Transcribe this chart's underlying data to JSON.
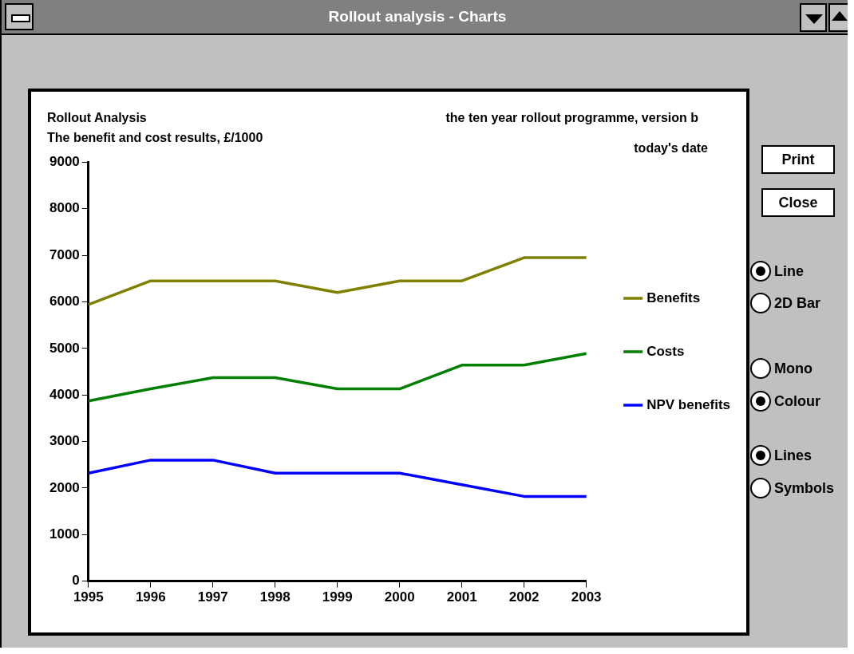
{
  "chart_data": {
    "type": "line",
    "title": "Rollout Analysis",
    "subtitle": "The benefit and cost results, £/1000",
    "annotations": [
      "the ten year rollout programme, version b",
      "today's date",
      "Rollout analysis - Charts",
      "Print",
      "Close",
      "Line",
      "2D Bar",
      "Mono",
      "Colour",
      "Lines",
      "Symbols"
    ],
    "categories": [
      "1995",
      "1996",
      "1997",
      "1998",
      "1999",
      "2000",
      "2001",
      "2002",
      "2003"
    ],
    "series": [
      {
        "name": "Benefits",
        "color": "#808000",
        "values": [
          5940,
          6450,
          6450,
          6450,
          6200,
          6450,
          6450,
          6950,
          6950
        ]
      },
      {
        "name": "Costs",
        "color": "#008000",
        "values": [
          3870,
          4130,
          4370,
          4370,
          4130,
          4130,
          4640,
          4640,
          4890
        ]
      },
      {
        "name": "NPV benefits",
        "color": "#0000ff",
        "values": [
          2320,
          2600,
          2600,
          2320,
          2320,
          2320,
          2070,
          1820,
          1820
        ]
      }
    ],
    "ylim": [
      0,
      9000
    ],
    "yticks": [
      0,
      1000,
      2000,
      3000,
      4000,
      5000,
      6000,
      7000,
      8000,
      9000
    ],
    "grid": false,
    "legend": "right",
    "marker": "none",
    "line_style": "solid"
  }
}
